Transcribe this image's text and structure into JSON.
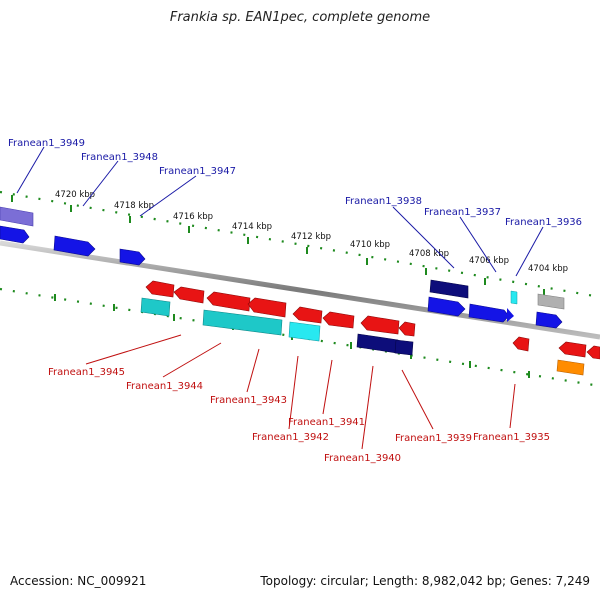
{
  "title": "Frankia sp. EAN1pec, complete genome",
  "accession": "Accession: NC_009921",
  "summary": "Topology: circular; Length: 8,982,042 bp; Genes: 7,249",
  "colors": {
    "backbone": "#8c8c8c",
    "tick": "#1e8a1e",
    "top_label": "#1a1aa6",
    "bottom_label": "#c01010",
    "red": "#e81414",
    "cyan": "#1ec8c8",
    "blue": "#1414e6",
    "navy": "#0d0d7a",
    "gray": "#b0b0b0",
    "orange": "#ff8c00",
    "lavender": "#7b6ed6",
    "aqua": "#28e8f0"
  },
  "scale": {
    "labels": [
      "4720 kbp",
      "4718 kbp",
      "4716 kbp",
      "4714 kbp",
      "4712 kbp",
      "4710 kbp",
      "4708 kbp",
      "4706 kbp",
      "4704 kbp"
    ]
  },
  "genes_top": [
    "Franean1_3949",
    "Franean1_3948",
    "Franean1_3947",
    "Franean1_3938",
    "Franean1_3937",
    "Franean1_3936"
  ],
  "genes_bottom": [
    "Franean1_3945",
    "Franean1_3944",
    "Franean1_3943",
    "Franean1_3942",
    "Franean1_3941",
    "Franean1_3940",
    "Franean1_3939",
    "Franean1_3935"
  ]
}
